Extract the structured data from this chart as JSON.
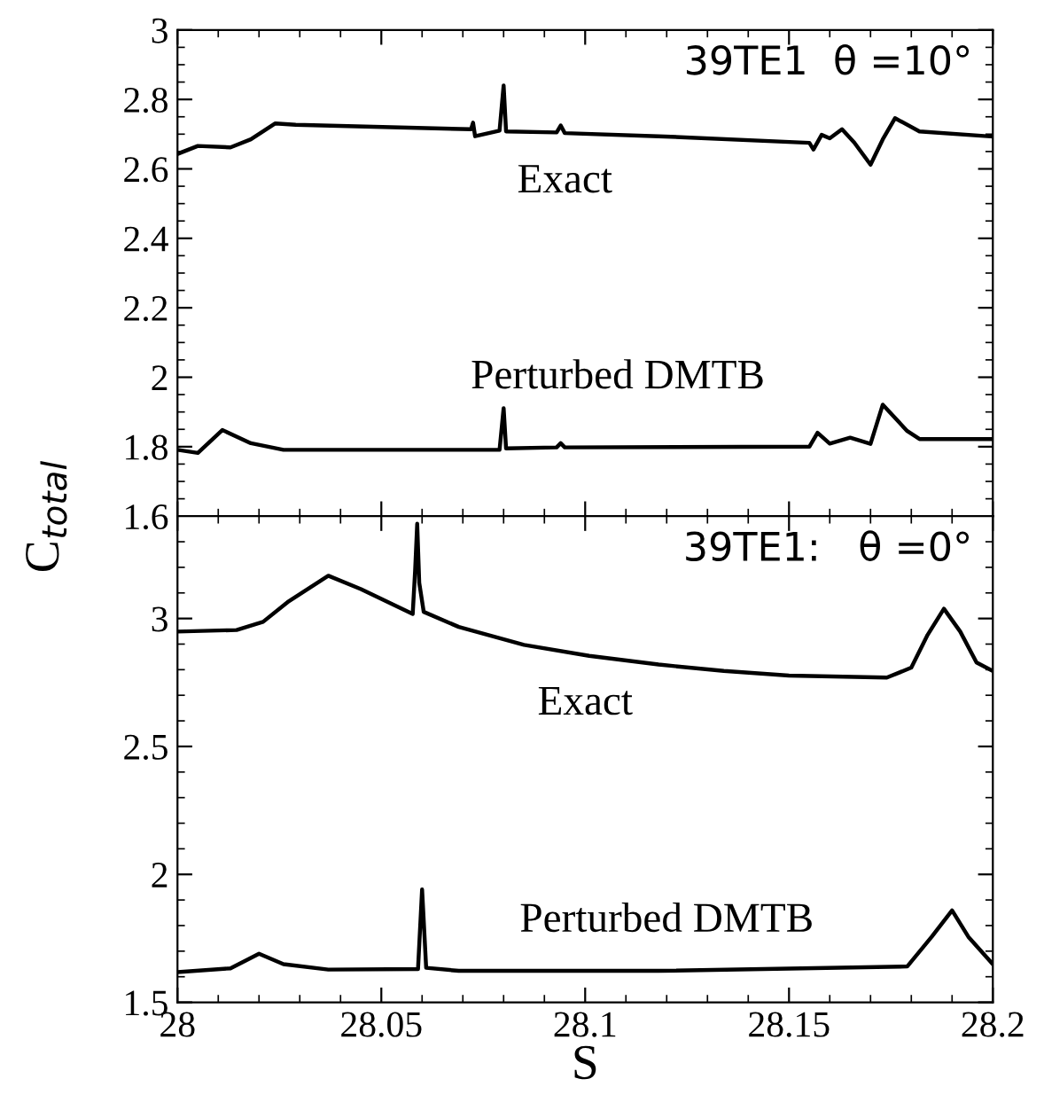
{
  "chart_data": [
    {
      "type": "line",
      "ylabel": "C$_{total}$",
      "xlim": [
        28,
        28.2
      ],
      "xticks": [
        28,
        28.05,
        28.1,
        28.15,
        28.2
      ],
      "ylim": [
        1.6,
        3
      ],
      "yticks": [
        1.6,
        1.8,
        2,
        2.2,
        2.4,
        2.6,
        2.8,
        3
      ],
      "tick_labels": "y",
      "grid": false,
      "legend": false,
      "annotations": [
        "39TE1  θ =10°"
      ],
      "series": [
        {
          "name": "Exact",
          "color": "#000000",
          "x": [
            28.0,
            28.005,
            28.013,
            28.018,
            28.024,
            28.029,
            28.072,
            28.0725,
            28.073,
            28.079,
            28.08,
            28.0806,
            28.093,
            28.094,
            28.095,
            28.118,
            28.155,
            28.156,
            28.158,
            28.16,
            28.163,
            28.166,
            28.17,
            28.173,
            28.176,
            28.182,
            28.2
          ],
          "values": [
            2.643,
            2.666,
            2.662,
            2.685,
            2.731,
            2.727,
            2.714,
            2.733,
            2.694,
            2.71,
            2.84,
            2.708,
            2.705,
            2.725,
            2.703,
            2.694,
            2.675,
            2.656,
            2.698,
            2.688,
            2.714,
            2.676,
            2.612,
            2.685,
            2.746,
            2.708,
            2.693
          ]
        },
        {
          "name": "Perturbed DMTB",
          "color": "#000000",
          "x": [
            28.0,
            28.005,
            28.011,
            28.018,
            28.026,
            28.079,
            28.08,
            28.0806,
            28.093,
            28.094,
            28.095,
            28.155,
            28.157,
            28.16,
            28.165,
            28.17,
            28.173,
            28.179,
            28.182,
            28.2
          ],
          "values": [
            1.791,
            1.782,
            1.848,
            1.81,
            1.791,
            1.791,
            1.911,
            1.795,
            1.798,
            1.81,
            1.798,
            1.8,
            1.84,
            1.809,
            1.826,
            1.808,
            1.921,
            1.845,
            1.822,
            1.822
          ]
        }
      ]
    },
    {
      "type": "line",
      "xlabel": "S",
      "xlim": [
        28,
        28.2
      ],
      "xticks": [
        28,
        28.05,
        28.1,
        28.15,
        28.2
      ],
      "ylim": [
        1.5,
        3.4
      ],
      "yticks": [
        1.5,
        2,
        2.5,
        3
      ],
      "grid": false,
      "legend": false,
      "annotations": [
        "39TE1:   θ =0°"
      ],
      "series": [
        {
          "name": "Exact",
          "color": "#000000",
          "x": [
            28.0,
            28.0145,
            28.021,
            28.027,
            28.037,
            28.045,
            28.0577,
            28.0583,
            28.0588,
            28.0593,
            28.0604,
            28.069,
            28.085,
            28.101,
            28.118,
            28.134,
            28.15,
            28.174,
            28.18,
            28.184,
            28.188,
            28.192,
            28.196,
            28.2
          ],
          "values": [
            2.949,
            2.955,
            2.987,
            3.064,
            3.167,
            3.115,
            3.018,
            3.19,
            3.37,
            3.14,
            3.026,
            2.967,
            2.897,
            2.854,
            2.82,
            2.795,
            2.777,
            2.769,
            2.808,
            2.936,
            3.038,
            2.949,
            2.828,
            2.795
          ]
        },
        {
          "name": "Perturbed DMTB",
          "color": "#000000",
          "x": [
            28.0,
            28.013,
            28.02,
            28.026,
            28.037,
            28.059,
            28.06,
            28.061,
            28.069,
            28.118,
            28.179,
            28.185,
            28.19,
            28.194,
            28.2
          ],
          "values": [
            1.618,
            1.633,
            1.69,
            1.649,
            1.628,
            1.63,
            1.941,
            1.635,
            1.623,
            1.623,
            1.64,
            1.756,
            1.859,
            1.756,
            1.649
          ]
        }
      ]
    }
  ]
}
